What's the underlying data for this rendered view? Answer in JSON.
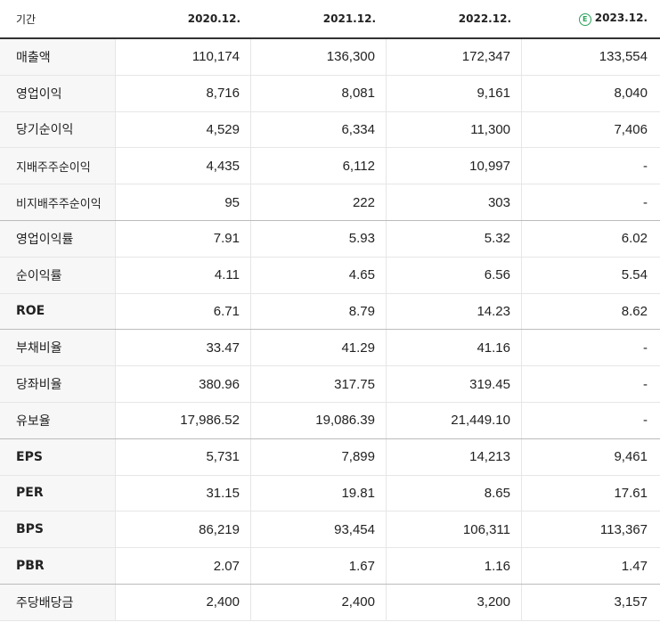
{
  "header": {
    "label": "기간",
    "estimate_icon": "estimate-icon",
    "estimate_icon_glyph": "E",
    "columns": [
      "2020.12.",
      "2021.12.",
      "2022.12.",
      "2023.12."
    ]
  },
  "rows": [
    {
      "label": "매출액",
      "values": [
        "110,174",
        "136,300",
        "172,347",
        "133,554"
      ]
    },
    {
      "label": "영업이익",
      "values": [
        "8,716",
        "8,081",
        "9,161",
        "8,040"
      ]
    },
    {
      "label": "당기순이익",
      "values": [
        "4,529",
        "6,334",
        "11,300",
        "7,406"
      ]
    },
    {
      "label": "지배주주순이익",
      "values": [
        "4,435",
        "6,112",
        "10,997",
        "-"
      ]
    },
    {
      "label": "비지배주주순이익",
      "values": [
        "95",
        "222",
        "303",
        "-"
      ]
    },
    {
      "label": "영업이익률",
      "values": [
        "7.91",
        "5.93",
        "5.32",
        "6.02"
      ]
    },
    {
      "label": "순이익률",
      "values": [
        "4.11",
        "4.65",
        "6.56",
        "5.54"
      ]
    },
    {
      "label": "ROE",
      "values": [
        "6.71",
        "8.79",
        "14.23",
        "8.62"
      ]
    },
    {
      "label": "부채비율",
      "values": [
        "33.47",
        "41.29",
        "41.16",
        "-"
      ]
    },
    {
      "label": "당좌비율",
      "values": [
        "380.96",
        "317.75",
        "319.45",
        "-"
      ]
    },
    {
      "label": "유보율",
      "values": [
        "17,986.52",
        "19,086.39",
        "21,449.10",
        "-"
      ]
    },
    {
      "label": "EPS",
      "values": [
        "5,731",
        "7,899",
        "14,213",
        "9,461"
      ]
    },
    {
      "label": "PER",
      "values": [
        "31.15",
        "19.81",
        "8.65",
        "17.61"
      ]
    },
    {
      "label": "BPS",
      "values": [
        "86,219",
        "93,454",
        "106,311",
        "113,367"
      ]
    },
    {
      "label": "PBR",
      "values": [
        "2.07",
        "1.67",
        "1.16",
        "1.47"
      ]
    },
    {
      "label": "주당배당금",
      "values": [
        "2,400",
        "2,400",
        "3,200",
        "3,157"
      ]
    }
  ],
  "colors": {
    "estimate_accent": "#27a35a",
    "label_background": "#f7f7f7"
  }
}
